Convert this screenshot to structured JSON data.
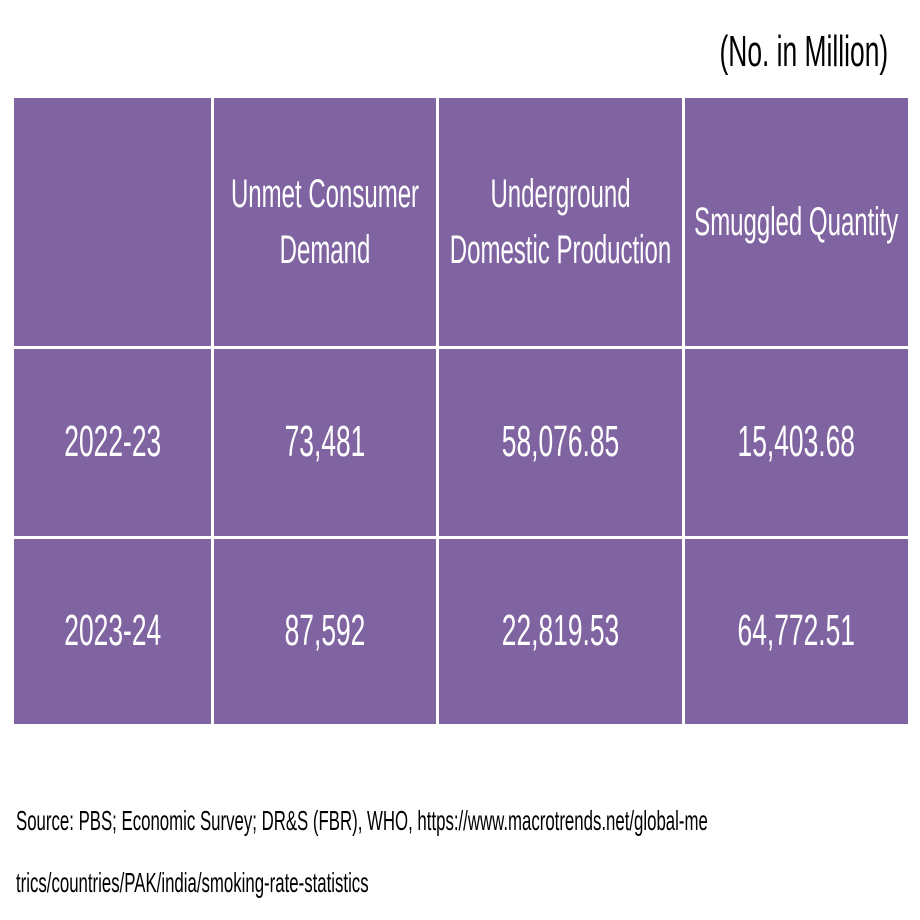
{
  "header": {
    "unit_note": "(No. in Million)"
  },
  "table": {
    "columns": [
      "Unmet Consumer Demand",
      "Underground Domestic Production",
      "Smuggled Quantity"
    ],
    "rows": [
      {
        "label": "2022-23",
        "values": [
          "73,481",
          "58,076.85",
          "15,403.68"
        ]
      },
      {
        "label": "2023-24",
        "values": [
          "87,592",
          "22,819.53",
          "64,772.51"
        ]
      }
    ]
  },
  "footer": {
    "source": "Source: PBS; Economic Survey; DR&S (FBR), WHO, https://www.macrotrends.net/global-metrics/countries/PAK/india/smoking-rate-statistics"
  }
}
